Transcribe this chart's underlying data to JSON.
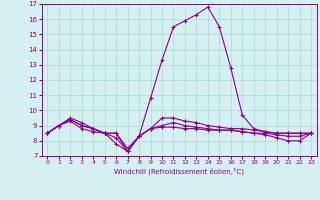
{
  "hours": [
    0,
    1,
    2,
    3,
    4,
    5,
    6,
    7,
    8,
    9,
    10,
    11,
    12,
    13,
    14,
    15,
    16,
    17,
    18,
    19,
    20,
    21,
    22,
    23
  ],
  "line1": [
    8.5,
    9.0,
    9.5,
    9.2,
    8.8,
    8.5,
    8.5,
    7.5,
    8.3,
    10.8,
    13.3,
    15.5,
    15.9,
    16.3,
    16.8,
    15.5,
    12.8,
    9.7,
    8.8,
    8.6,
    8.5,
    8.5,
    8.5,
    8.5
  ],
  "line2": [
    8.5,
    9.0,
    9.3,
    8.8,
    8.6,
    8.5,
    7.8,
    7.3,
    8.3,
    8.8,
    9.5,
    9.5,
    9.3,
    9.2,
    9.0,
    8.9,
    8.8,
    8.8,
    8.7,
    8.6,
    8.5,
    8.5,
    8.5,
    8.5
  ],
  "line3": [
    8.5,
    9.0,
    9.4,
    9.0,
    8.8,
    8.5,
    8.2,
    7.3,
    8.3,
    8.8,
    9.0,
    9.2,
    9.0,
    8.9,
    8.8,
    8.7,
    8.7,
    8.6,
    8.5,
    8.5,
    8.4,
    8.3,
    8.3,
    8.5
  ],
  "line4": [
    8.5,
    9.0,
    9.4,
    9.0,
    8.8,
    8.5,
    8.5,
    7.3,
    8.3,
    8.8,
    8.9,
    8.9,
    8.8,
    8.8,
    8.7,
    8.7,
    8.7,
    8.6,
    8.5,
    8.4,
    8.2,
    8.0,
    8.0,
    8.5
  ],
  "line_color": "#8b008b",
  "bg_color": "#d4f0f0",
  "grid_color": "#b0d8d8",
  "xlabel": "Windchill (Refroidissement éolien,°C)",
  "xlim": [
    -0.5,
    23.5
  ],
  "ylim": [
    7,
    17
  ],
  "yticks": [
    7,
    8,
    9,
    10,
    11,
    12,
    13,
    14,
    15,
    16,
    17
  ],
  "xticks": [
    0,
    1,
    2,
    3,
    4,
    5,
    6,
    7,
    8,
    9,
    10,
    11,
    12,
    13,
    14,
    15,
    16,
    17,
    18,
    19,
    20,
    21,
    22,
    23
  ]
}
